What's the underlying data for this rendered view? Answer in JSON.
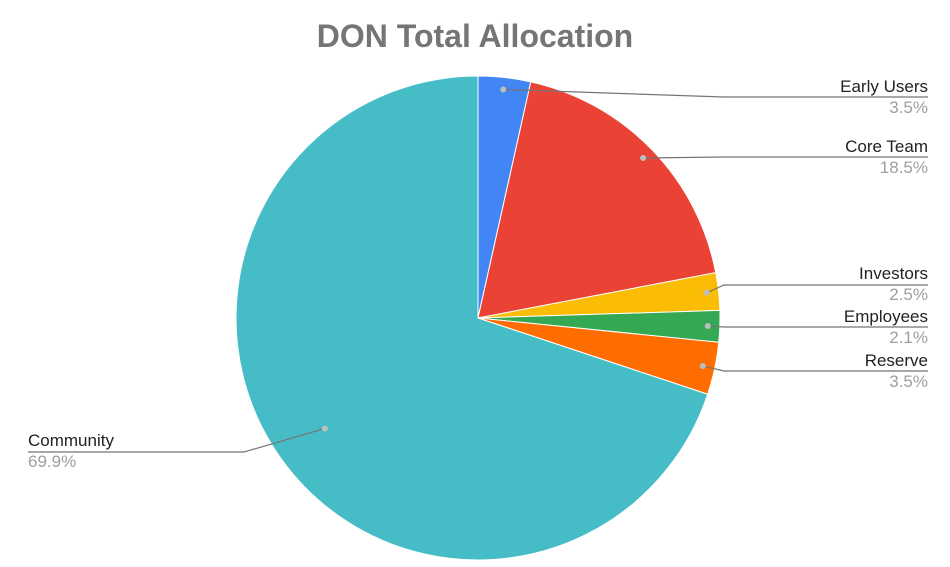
{
  "chart_data": {
    "type": "pie",
    "title": "DON Total Allocation",
    "legend": "leader-line labels beside slices",
    "start_angle_deg": 0,
    "direction": "clockwise",
    "slices": [
      {
        "label": "Early Users",
        "value": 3.5,
        "display": "3.5%",
        "color": "#4285F4"
      },
      {
        "label": "Core Team",
        "value": 18.5,
        "display": "18.5%",
        "color": "#EA4335"
      },
      {
        "label": "Investors",
        "value": 2.5,
        "display": "2.5%",
        "color": "#FBBC04"
      },
      {
        "label": "Employees",
        "value": 2.1,
        "display": "2.1%",
        "color": "#34A853"
      },
      {
        "label": "Reserve",
        "value": 3.5,
        "display": "3.5%",
        "color": "#FF6D01"
      },
      {
        "label": "Community",
        "value": 69.9,
        "display": "69.9%",
        "color": "#46BDC6"
      }
    ]
  }
}
